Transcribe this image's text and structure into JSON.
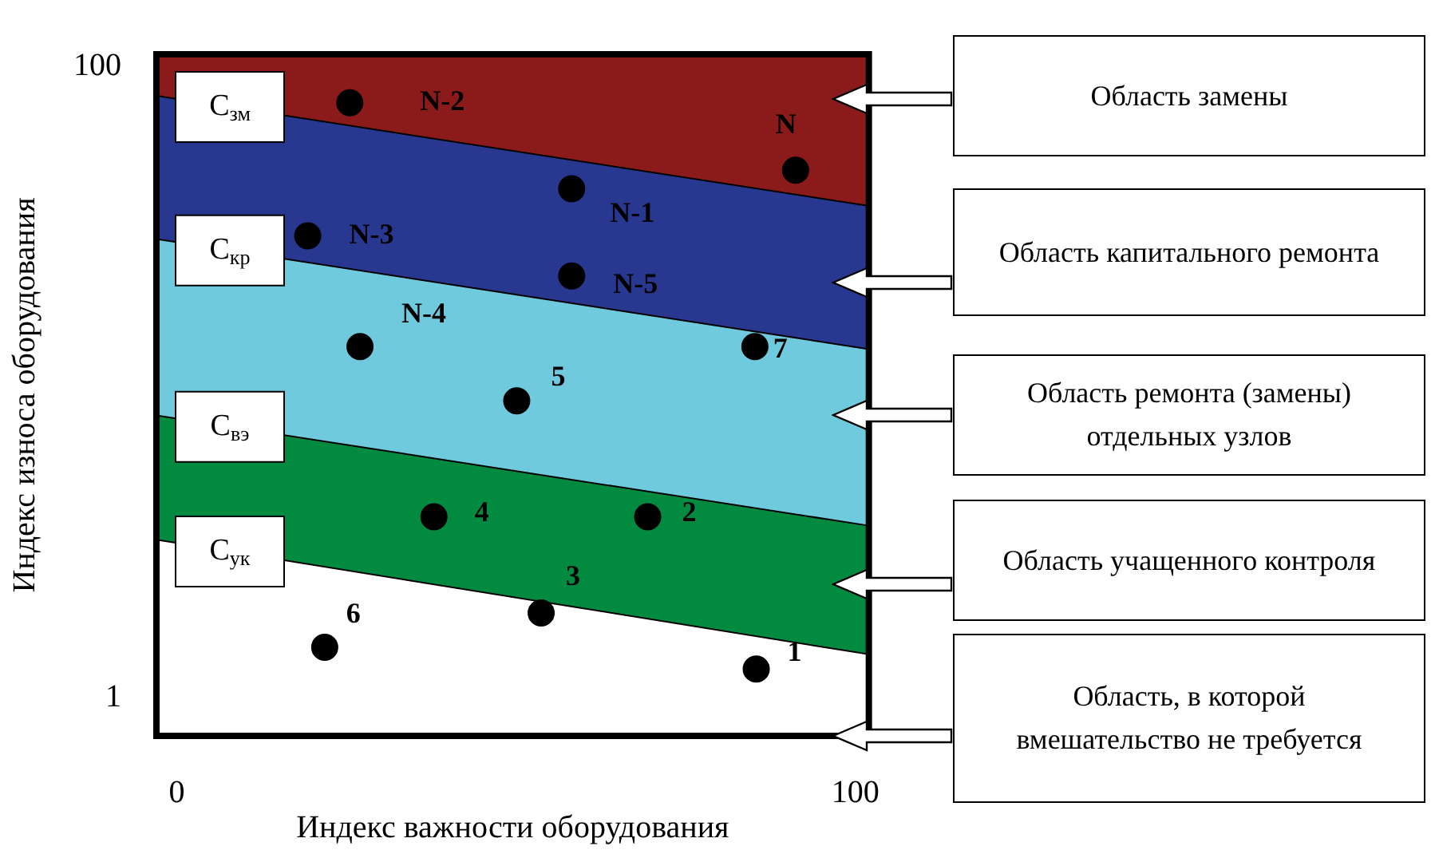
{
  "chart_data": {
    "type": "scatter",
    "xlabel": "Индекс важности оборудования",
    "ylabel": "Индекс износа оборудования",
    "xlim": [
      -3,
      102
    ],
    "xticks": [
      0,
      100
    ],
    "ylim": [
      -5,
      102
    ],
    "yticks": [
      1,
      100
    ],
    "stacked": true,
    "series": [
      {
        "type": "area",
        "name": "C$_{ук}$",
        "color": "#ffffff",
        "x": [
          -3,
          102
        ],
        "values": [
          25.8,
          7.8
        ]
      },
      {
        "type": "area",
        "name": "C$_{вэ}$",
        "color": "#038a41",
        "x": [
          -3,
          102
        ],
        "values": [
          19.5,
          20.2
        ]
      },
      {
        "type": "area",
        "name": "C$_{кр}$",
        "color": "#6ecadc",
        "x": [
          -3,
          102
        ],
        "values": [
          27.7,
          27.7
        ]
      },
      {
        "type": "area",
        "name": "C$_{зм}$",
        "color": "#283891",
        "x": [
          -3,
          102
        ],
        "values": [
          22.5,
          22.5
        ]
      },
      {
        "type": "area",
        "color": "#8b1a1a",
        "x": [
          -3,
          102
        ],
        "values": [
          6.5,
          23.8
        ]
      },
      {
        "type": "scatter",
        "marker": "circle",
        "color": "#000000",
        "x": [
          25.5,
          91.2,
          58.2,
          19.3,
          58.2,
          27.0,
          85.2,
          50.1,
          37.9,
          69.4,
          53.7,
          21.8,
          85.4
        ],
        "values": [
          94.4,
          83.8,
          80.9,
          73.5,
          67.2,
          56.1,
          56.1,
          47.6,
          29.4,
          29.4,
          14.3,
          8.9,
          5.5
        ]
      }
    ],
    "annotations": [
      {
        "text": "N-2",
        "x": 25.5,
        "y": 94.4
      },
      {
        "text": "N",
        "x": 91.2,
        "y": 83.8
      },
      {
        "text": "N-1",
        "x": 58.2,
        "y": 80.9
      },
      {
        "text": "N-3",
        "x": 19.3,
        "y": 73.5
      },
      {
        "text": "N-5",
        "x": 58.2,
        "y": 67.2
      },
      {
        "text": "N-4",
        "x": 27.0,
        "y": 56.1
      },
      {
        "text": "7",
        "x": 85.2,
        "y": 56.1
      },
      {
        "text": "5",
        "x": 50.1,
        "y": 47.6
      },
      {
        "text": "4",
        "x": 37.9,
        "y": 29.4
      },
      {
        "text": "2",
        "x": 69.4,
        "y": 29.4
      },
      {
        "text": "3",
        "x": 53.7,
        "y": 14.3
      },
      {
        "text": "6",
        "x": 21.8,
        "y": 8.9
      },
      {
        "text": "1",
        "x": 85.4,
        "y": 5.5
      },
      "Область замены",
      "Область капитального ремонта",
      "Область ремонта (замены) отдельных узлов",
      "Область учащенного контроля",
      "Область, в которой вмешательство не требуется"
    ]
  }
}
